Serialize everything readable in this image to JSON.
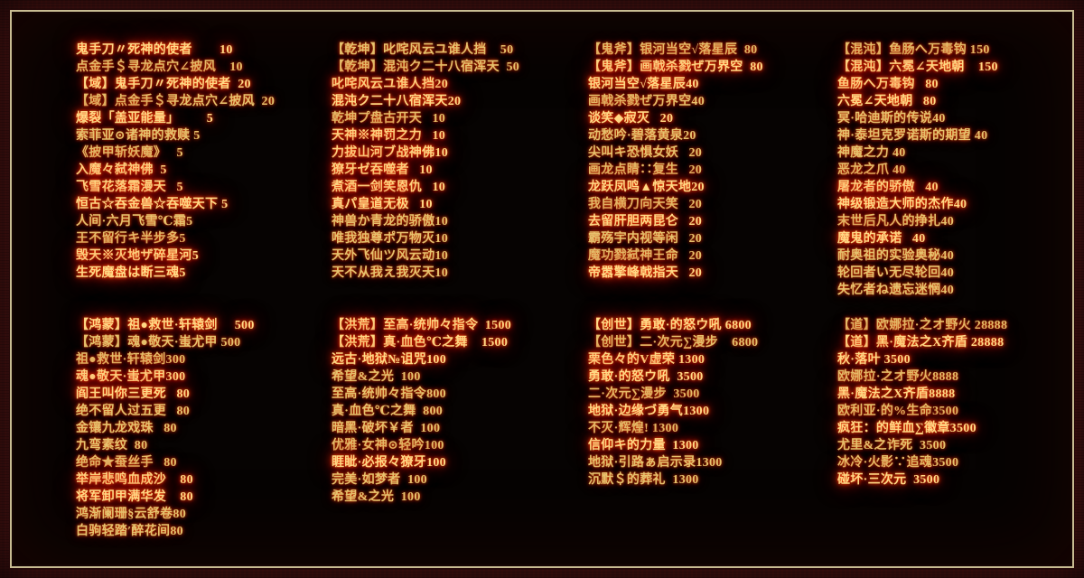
{
  "colors": {
    "frame": "#421111",
    "trim": "#c8bc92",
    "board_bg": "#060302",
    "text": "#e6c26d",
    "text_highlight": "#ffd985",
    "glow": "#ff3a00"
  },
  "sections": [
    {
      "name": "top-price-list",
      "columns": [
        {
          "items": [
            {
              "t": "鬼手刀〃死神的使者        10",
              "h": true
            },
            {
              "t": "点金手＄寻龙点穴∠披风    10"
            },
            {
              "t": "【域】鬼手刀〃死神的使者  20",
              "h": true
            },
            {
              "t": "【域】点金手＄寻龙点穴∠披风  20"
            },
            {
              "t": "爆裂「盖亚能量」        5",
              "h": true
            },
            {
              "t": "索菲亚⊙诸神的救赎 5"
            },
            {
              "t": "《披甲斩妖魔》   5"
            },
            {
              "t": "入魔々弑神佛  5",
              "h": true
            },
            {
              "t": "飞雪花落霜漫天   5",
              "h": true
            },
            {
              "t": "恒古☆吞金兽☆吞噬天下 5",
              "h": true
            },
            {
              "t": "人间·六月飞雪℃霜5"
            },
            {
              "t": "王不留行キ半步多5"
            },
            {
              "t": "毁天※灭地ザ碎星河5",
              "h": true
            },
            {
              "t": "生死魔盘は断三魂5",
              "h": true
            }
          ]
        },
        {
          "items": [
            {
              "t": "【乾坤】叱咤风云ユ谁人挡    50"
            },
            {
              "t": "【乾坤】混沌ク二十八宿浑天  50"
            },
            {
              "t": "叱咤风云ユ谁人挡20",
              "h": true
            },
            {
              "t": "混沌ク二十八宿浑天20",
              "h": true
            },
            {
              "t": "乾坤プ盘古开天   10"
            },
            {
              "t": "天神※神罚之力   10",
              "h": true
            },
            {
              "t": "力拔山河ブ战神佛10",
              "h": true
            },
            {
              "t": "獠牙ゼ吞噬者   10",
              "h": true
            },
            {
              "t": "煮酒一剑笑恩仇   10",
              "h": true
            },
            {
              "t": "真パ皇道无极   10",
              "h": true
            },
            {
              "t": "神兽か青龙的骄傲10"
            },
            {
              "t": "唯我独尊ポ万物灭10"
            },
            {
              "t": "天外飞仙ツ风云动10"
            },
            {
              "t": "天不从我え我灭天10"
            }
          ]
        },
        {
          "items": [
            {
              "t": "【鬼斧】银河当空√落星辰  80"
            },
            {
              "t": "【鬼斧】画戟杀戮ぜ万界空  80",
              "h": true
            },
            {
              "t": "银河当空√落星辰40",
              "h": true
            },
            {
              "t": "画戟杀戮ぜ万界空40"
            },
            {
              "t": "谈笑◆寂灭   20",
              "h": true
            },
            {
              "t": "动愁吟·碧落黄泉20"
            },
            {
              "t": "尖叫キ恐惧女妖   20"
            },
            {
              "t": "画龙点睛∷复生   20"
            },
            {
              "t": "龙跃凤鸣▲惊天地20",
              "h": true
            },
            {
              "t": "我自横刀向天笑   20"
            },
            {
              "t": "去留肝胆两昆仑   20",
              "h": true
            },
            {
              "t": "霸殇宇内视等闲   20"
            },
            {
              "t": "魔功戮弑神王命   20"
            },
            {
              "t": "帝嚣擎峰戟指天   20",
              "h": true
            }
          ]
        },
        {
          "items": [
            {
              "t": "【混沌】鱼肠へ万毒钩 150"
            },
            {
              "t": "【混沌】六冕∠天地朝    150",
              "h": true
            },
            {
              "t": "鱼肠へ万毒钩   80",
              "h": true
            },
            {
              "t": "六冕∠天地朝   80",
              "h": true
            },
            {
              "t": "冥·哈迪斯的传说40"
            },
            {
              "t": "神·泰坦克罗诺斯的期望 40"
            },
            {
              "t": "神魔之力 40"
            },
            {
              "t": "恶龙之爪 40"
            },
            {
              "t": "屠龙者的骄傲   40",
              "h": true
            },
            {
              "t": "神级锻造大师的杰作40",
              "h": true
            },
            {
              "t": "末世后凡人的挣扎40"
            },
            {
              "t": "魔鬼的承诺   40",
              "h": true
            },
            {
              "t": "耐奥祖的实验奥秘40"
            },
            {
              "t": "轮回者い无尽轮回40"
            },
            {
              "t": "失忆者ね遗忘迷惘40"
            }
          ]
        }
      ]
    },
    {
      "name": "bottom-price-list",
      "columns": [
        {
          "items": [
            {
              "t": "【鸿蒙】祖●救世·轩辕剑     500",
              "h": true
            },
            {
              "t": "【鸿蒙】魂●敬天·蚩尤甲 500"
            },
            {
              "t": "祖●救世·轩辕剑300"
            },
            {
              "t": "魂●敬天·蚩尤甲300",
              "h": true
            },
            {
              "t": "阎王叫你三更死   80",
              "h": true
            },
            {
              "t": "绝不留人过五更   80"
            },
            {
              "t": "金镶九龙戏珠   80"
            },
            {
              "t": "九弯素纹  80"
            },
            {
              "t": "绝命★蚕丝手   80"
            },
            {
              "t": "举岸悲鸣血成沙    80",
              "h": true
            },
            {
              "t": "将军卸甲满华发    80",
              "h": true
            },
            {
              "t": "鸿渐阑珊§云舒卷80"
            },
            {
              "t": "白驹轻踏′醉花间80"
            }
          ]
        },
        {
          "items": [
            {
              "t": "【洪荒】至高·统帅々指令  1500",
              "h": true
            },
            {
              "t": "【洪荒】真·血色℃之舞    1500",
              "h": true
            },
            {
              "t": "远古·地狱№诅咒100",
              "h": true
            },
            {
              "t": "希望&之光  100"
            },
            {
              "t": "至高·统帅々指令800"
            },
            {
              "t": "真·血色℃之舞  800"
            },
            {
              "t": "暗黑·破坏￥者  100"
            },
            {
              "t": "优雅·女神⊙轻吟100"
            },
            {
              "t": "睚眦·必报々獠牙100",
              "h": true
            },
            {
              "t": "完美·如梦者  100"
            },
            {
              "t": "希望&之光  100"
            }
          ]
        },
        {
          "items": [
            {
              "t": "【创世】勇敢·的怒ウ吼 6800",
              "h": true
            },
            {
              "t": "【创世】二·次元∑漫步    6800"
            },
            {
              "t": "栗色々的V虚荣 1300",
              "h": true
            },
            {
              "t": "勇敢·的怒ウ吼  3500",
              "h": true
            },
            {
              "t": "二·次元∑漫步  3500"
            },
            {
              "t": "地狱·边缘づ勇气1300",
              "h": true
            },
            {
              "t": "不灭·辉煌! 1300"
            },
            {
              "t": "信仰キ的力量  1300",
              "h": true
            },
            {
              "t": "地狱·引路ぁ启示录1300"
            },
            {
              "t": "沉默＄的葬礼  1300"
            }
          ]
        },
        {
          "items": [
            {
              "t": "【道】欧娜拉·之オ野火 28888"
            },
            {
              "t": "【道】黑·魔法之X齐盾 28888",
              "h": true
            },
            {
              "t": "秋·落叶 3500",
              "h": true
            },
            {
              "t": "欧娜拉·之オ野火8888"
            },
            {
              "t": "黑·魔法之X齐盾8888",
              "h": true
            },
            {
              "t": "欧利亚·的%生命3500"
            },
            {
              "t": "疯狂：的鲜血∑徽章3500",
              "h": true
            },
            {
              "t": "尤里&之诈死  3500"
            },
            {
              "t": "冰冷·火影∵追魂3500"
            },
            {
              "t": "碰坏·三次元  3500",
              "h": true
            }
          ]
        }
      ]
    }
  ]
}
